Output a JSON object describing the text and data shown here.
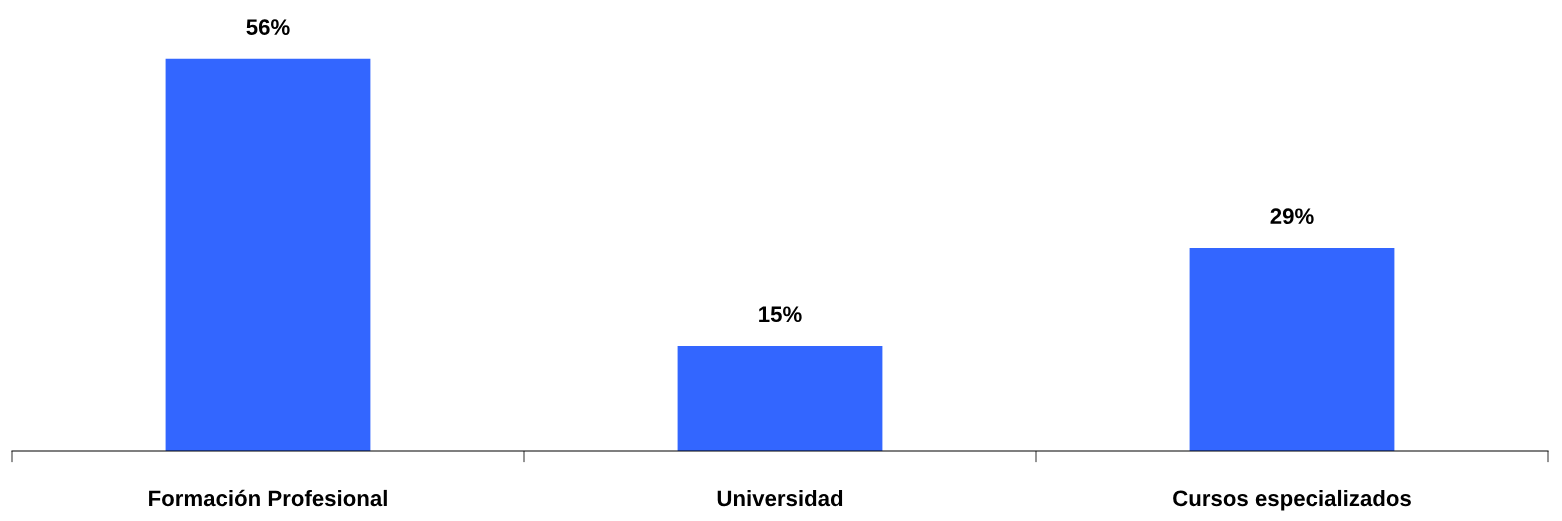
{
  "chart_data": {
    "type": "bar",
    "categories": [
      "Formación Profesional",
      "Universidad",
      "Cursos especializados"
    ],
    "values": [
      56,
      15,
      29
    ],
    "value_labels": [
      "56%",
      "15%",
      "29%"
    ],
    "color": "#3366ff"
  }
}
